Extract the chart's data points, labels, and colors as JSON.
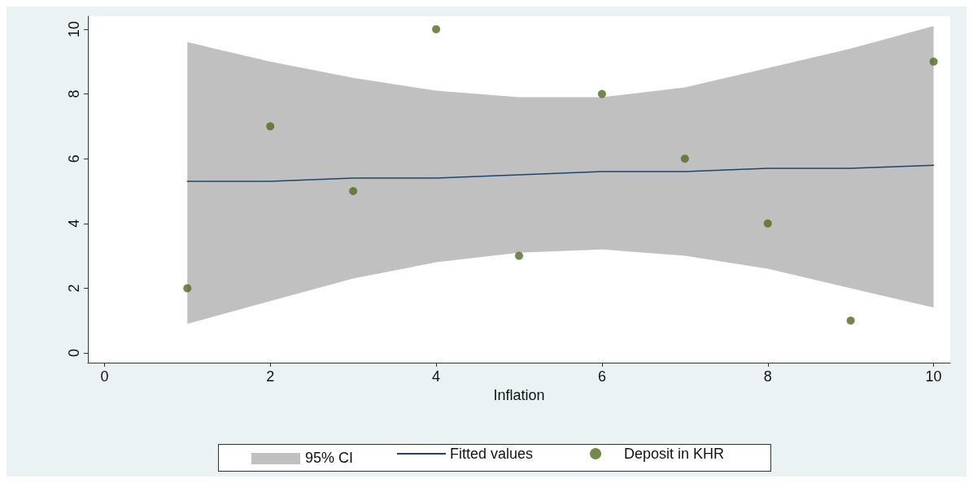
{
  "chart_data": {
    "type": "scatter",
    "xlabel": "Inflation",
    "xlim": [
      -0.2,
      10.2
    ],
    "xticks": [
      0,
      2,
      4,
      6,
      8,
      10
    ],
    "ylim": [
      -0.3,
      10.4
    ],
    "yticks": [
      0,
      2,
      4,
      6,
      8,
      10
    ],
    "grid": false,
    "legend": "bottom",
    "annotations": [
      "95% CI"
    ],
    "series": [
      {
        "name": "Fitted values",
        "type": "line",
        "color": "#1a476f",
        "x": [
          1,
          2,
          3,
          4,
          5,
          6,
          7,
          8,
          9,
          10
        ],
        "values": [
          5.3,
          5.3,
          5.4,
          5.4,
          5.5,
          5.6,
          5.6,
          5.7,
          5.7,
          5.8
        ],
        "lower": [
          0.9,
          1.6,
          2.3,
          2.8,
          3.1,
          3.2,
          3.0,
          2.6,
          2.0,
          1.4
        ],
        "upper": [
          9.6,
          9.0,
          8.5,
          8.1,
          7.9,
          7.9,
          8.2,
          8.8,
          9.4,
          10.1
        ]
      },
      {
        "name": "Deposit in KHR",
        "marker": "circle",
        "color": "#4d6b1e",
        "x": [
          1,
          2,
          3,
          4,
          5,
          6,
          7,
          8,
          9,
          10
        ],
        "values": [
          2,
          7,
          5,
          10,
          3,
          8,
          6,
          4,
          1,
          9
        ]
      }
    ]
  }
}
